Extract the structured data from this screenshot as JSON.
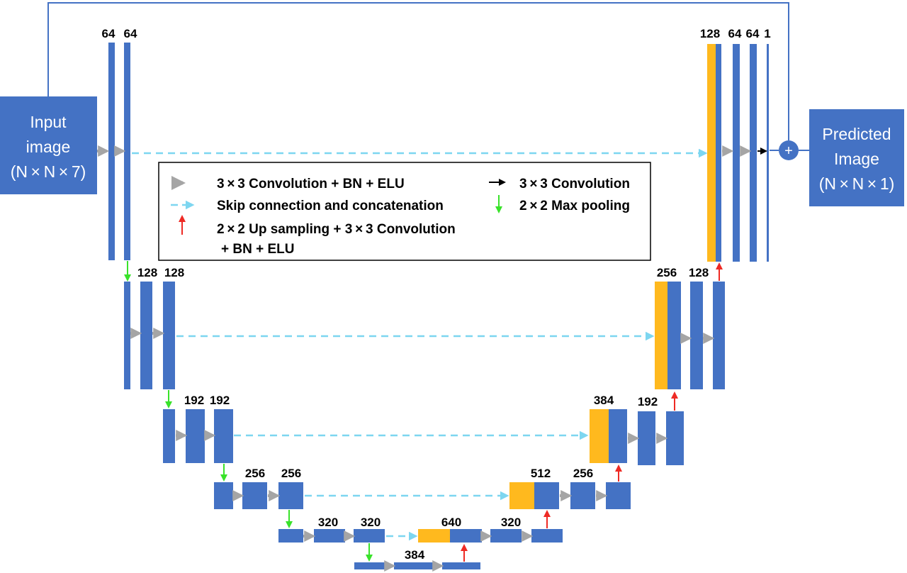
{
  "colors": {
    "block": "#4472C4",
    "concat": "#FFB91E",
    "conv_arrow": "#A5A5A5",
    "skip": "#7DD6F0",
    "pool": "#39E22A",
    "up": "#EE2A24",
    "conv_black": "#000000",
    "line": "#4472C4"
  },
  "input": {
    "line1": "Input",
    "line2": "image",
    "line3": "(N × N × 7)"
  },
  "output": {
    "line1": "Predicted",
    "line2": "Image",
    "line3": "(N × N × 1)"
  },
  "sum_symbol": "+",
  "legend": {
    "conv_bn_elu": "3 × 3 Convolution + BN + ELU",
    "skip": "Skip connection and concatenation",
    "up_line1": "2 × 2 Up sampling + 3 × 3 Convolution",
    "up_line2": "+ BN + ELU",
    "conv": "3 × 3 Convolution",
    "pool": "2 × 2 Max pooling"
  },
  "encoder": [
    {
      "level": 1,
      "channels": [
        "64",
        "64"
      ]
    },
    {
      "level": 2,
      "channels": [
        "128",
        "128"
      ]
    },
    {
      "level": 3,
      "channels": [
        "192",
        "192"
      ]
    },
    {
      "level": 4,
      "channels": [
        "256",
        "256"
      ]
    },
    {
      "level": 5,
      "channels": [
        "320",
        "320"
      ]
    }
  ],
  "bottleneck": {
    "channels": "384"
  },
  "decoder": [
    {
      "level": 5,
      "concat": "640",
      "conv": "320"
    },
    {
      "level": 4,
      "concat": "512",
      "conv": "256"
    },
    {
      "level": 3,
      "concat": "384",
      "conv": "192"
    },
    {
      "level": 2,
      "concat": "256",
      "conv": "128"
    },
    {
      "level": 1,
      "concat": "128",
      "conv": "64",
      "conv2": "64",
      "out": "1"
    }
  ]
}
